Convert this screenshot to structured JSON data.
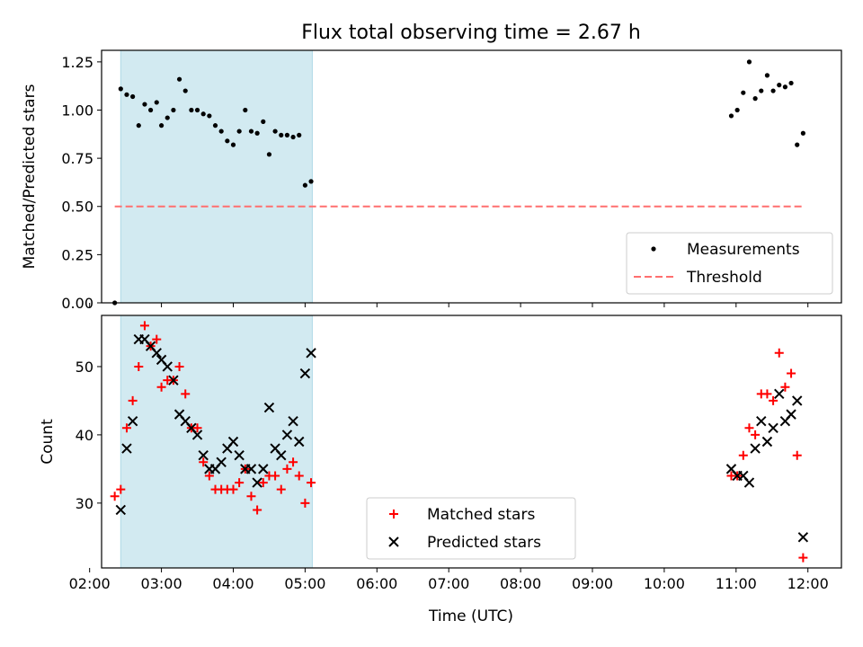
{
  "figure": {
    "title": "Flux total observing time = 2.67 h",
    "xlabel": "Time (UTC)"
  },
  "colors": {
    "shade": "#add8e6",
    "threshold": "#ff6f6f",
    "measurement": "#000000",
    "matched": "#ff0000",
    "predicted": "#000000"
  },
  "chart_data": [
    {
      "type": "scatter",
      "ylabel": "Matched/Predicted stars",
      "xlim": [
        "02:10",
        "12:28"
      ],
      "ylim": [
        0,
        1.31
      ],
      "xticks": [
        "02:00",
        "03:00",
        "04:00",
        "05:00",
        "06:00",
        "07:00",
        "08:00",
        "09:00",
        "10:00",
        "11:00",
        "12:00"
      ],
      "yticks": [
        "0.00",
        "0.25",
        "0.50",
        "0.75",
        "1.00",
        "1.25"
      ],
      "shaded_range": [
        "02:26",
        "05:06"
      ],
      "legend_position": "lower right",
      "series": [
        {
          "name": "Measurements",
          "marker": "dot",
          "points": [
            [
              "02:21",
              0.0
            ],
            [
              "02:26",
              1.11
            ],
            [
              "02:31",
              1.08
            ],
            [
              "02:36",
              1.07
            ],
            [
              "02:41",
              0.92
            ],
            [
              "02:46",
              1.03
            ],
            [
              "02:51",
              1.0
            ],
            [
              "02:56",
              1.04
            ],
            [
              "03:00",
              0.92
            ],
            [
              "03:05",
              0.96
            ],
            [
              "03:10",
              1.0
            ],
            [
              "03:15",
              1.16
            ],
            [
              "03:20",
              1.1
            ],
            [
              "03:25",
              1.0
            ],
            [
              "03:30",
              1.0
            ],
            [
              "03:35",
              0.98
            ],
            [
              "03:40",
              0.97
            ],
            [
              "03:45",
              0.92
            ],
            [
              "03:50",
              0.89
            ],
            [
              "03:55",
              0.84
            ],
            [
              "04:00",
              0.82
            ],
            [
              "04:05",
              0.89
            ],
            [
              "04:10",
              1.0
            ],
            [
              "04:15",
              0.89
            ],
            [
              "04:20",
              0.88
            ],
            [
              "04:25",
              0.94
            ],
            [
              "04:30",
              0.77
            ],
            [
              "04:35",
              0.89
            ],
            [
              "04:40",
              0.87
            ],
            [
              "04:45",
              0.87
            ],
            [
              "04:50",
              0.86
            ],
            [
              "04:55",
              0.87
            ],
            [
              "05:00",
              0.61
            ],
            [
              "05:05",
              0.63
            ],
            [
              "10:56",
              0.97
            ],
            [
              "11:01",
              1.0
            ],
            [
              "11:06",
              1.09
            ],
            [
              "11:11",
              1.25
            ],
            [
              "11:16",
              1.06
            ],
            [
              "11:21",
              1.1
            ],
            [
              "11:26",
              1.18
            ],
            [
              "11:31",
              1.1
            ],
            [
              "11:36",
              1.13
            ],
            [
              "11:41",
              1.12
            ],
            [
              "11:46",
              1.14
            ],
            [
              "11:51",
              0.82
            ],
            [
              "11:56",
              0.88
            ]
          ]
        },
        {
          "name": "Threshold",
          "marker": "dashed-line",
          "points": [
            [
              "02:21",
              0.5
            ],
            [
              "11:56",
              0.5
            ]
          ]
        }
      ]
    },
    {
      "type": "scatter",
      "ylabel": "Count",
      "xlim": [
        "02:10",
        "12:28"
      ],
      "ylim": [
        20.5,
        57.5
      ],
      "xticks": [
        "02:00",
        "03:00",
        "04:00",
        "05:00",
        "06:00",
        "07:00",
        "08:00",
        "09:00",
        "10:00",
        "11:00",
        "12:00"
      ],
      "yticks": [
        "30",
        "40",
        "50"
      ],
      "shaded_range": [
        "02:26",
        "05:06"
      ],
      "legend_position": "lower center",
      "series": [
        {
          "name": "Matched stars",
          "marker": "plus",
          "points": [
            [
              "02:21",
              31
            ],
            [
              "02:26",
              32
            ],
            [
              "02:31",
              41
            ],
            [
              "02:36",
              45
            ],
            [
              "02:41",
              50
            ],
            [
              "02:46",
              56
            ],
            [
              "02:51",
              53
            ],
            [
              "02:56",
              54
            ],
            [
              "03:00",
              47
            ],
            [
              "03:05",
              48
            ],
            [
              "03:10",
              48
            ],
            [
              "03:15",
              50
            ],
            [
              "03:20",
              46
            ],
            [
              "03:25",
              41
            ],
            [
              "03:30",
              41
            ],
            [
              "03:35",
              36
            ],
            [
              "03:40",
              34
            ],
            [
              "03:45",
              32
            ],
            [
              "03:50",
              32
            ],
            [
              "03:55",
              32
            ],
            [
              "04:00",
              32
            ],
            [
              "04:05",
              33
            ],
            [
              "04:10",
              35
            ],
            [
              "04:15",
              31
            ],
            [
              "04:20",
              29
            ],
            [
              "04:25",
              33
            ],
            [
              "04:30",
              34
            ],
            [
              "04:35",
              34
            ],
            [
              "04:40",
              32
            ],
            [
              "04:45",
              35
            ],
            [
              "04:50",
              36
            ],
            [
              "04:55",
              34
            ],
            [
              "05:00",
              30
            ],
            [
              "05:05",
              33
            ],
            [
              "10:56",
              34
            ],
            [
              "11:01",
              34
            ],
            [
              "11:06",
              37
            ],
            [
              "11:11",
              41
            ],
            [
              "11:16",
              40
            ],
            [
              "11:21",
              46
            ],
            [
              "11:26",
              46
            ],
            [
              "11:31",
              45
            ],
            [
              "11:36",
              52
            ],
            [
              "11:41",
              47
            ],
            [
              "11:46",
              49
            ],
            [
              "11:51",
              37
            ],
            [
              "11:56",
              22
            ]
          ]
        },
        {
          "name": "Predicted stars",
          "marker": "x",
          "points": [
            [
              "02:26",
              29
            ],
            [
              "02:31",
              38
            ],
            [
              "02:36",
              42
            ],
            [
              "02:41",
              54
            ],
            [
              "02:46",
              54
            ],
            [
              "02:51",
              53
            ],
            [
              "02:56",
              52
            ],
            [
              "03:00",
              51
            ],
            [
              "03:05",
              50
            ],
            [
              "03:10",
              48
            ],
            [
              "03:15",
              43
            ],
            [
              "03:20",
              42
            ],
            [
              "03:25",
              41
            ],
            [
              "03:30",
              40
            ],
            [
              "03:35",
              37
            ],
            [
              "03:40",
              35
            ],
            [
              "03:45",
              35
            ],
            [
              "03:50",
              36
            ],
            [
              "03:55",
              38
            ],
            [
              "04:00",
              39
            ],
            [
              "04:05",
              37
            ],
            [
              "04:10",
              35
            ],
            [
              "04:15",
              35
            ],
            [
              "04:20",
              33
            ],
            [
              "04:25",
              35
            ],
            [
              "04:30",
              44
            ],
            [
              "04:35",
              38
            ],
            [
              "04:40",
              37
            ],
            [
              "04:45",
              40
            ],
            [
              "04:50",
              42
            ],
            [
              "04:55",
              39
            ],
            [
              "05:00",
              49
            ],
            [
              "05:05",
              52
            ],
            [
              "10:56",
              35
            ],
            [
              "11:01",
              34
            ],
            [
              "11:06",
              34
            ],
            [
              "11:11",
              33
            ],
            [
              "11:16",
              38
            ],
            [
              "11:21",
              42
            ],
            [
              "11:26",
              39
            ],
            [
              "11:31",
              41
            ],
            [
              "11:36",
              46
            ],
            [
              "11:41",
              42
            ],
            [
              "11:46",
              43
            ],
            [
              "11:51",
              45
            ],
            [
              "11:56",
              25
            ]
          ]
        }
      ]
    }
  ]
}
